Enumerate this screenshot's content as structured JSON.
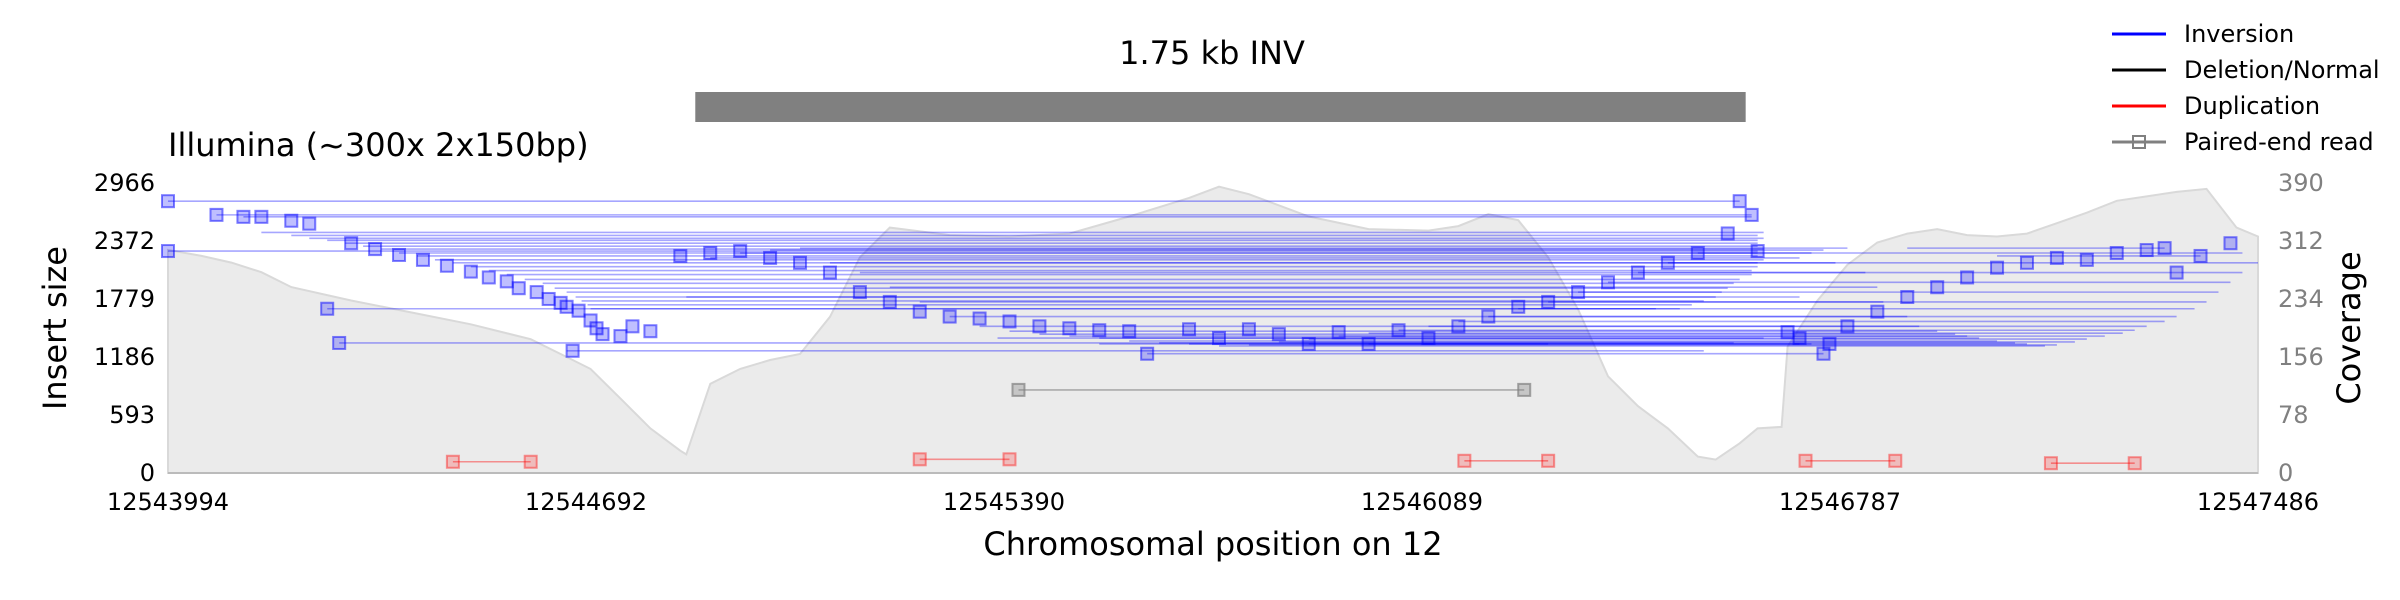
{
  "chart_data": {
    "type": "line",
    "sv_label": "1.75 kb INV",
    "sv_region": [
      12544875,
      12546630
    ],
    "panel_title": "Illumina (~300x 2x150bp)",
    "xlabel": "Chromosomal position on 12",
    "ylabel": "Insert size",
    "y2label": "Coverage",
    "xlim": [
      12543994,
      12547486
    ],
    "ylim": [
      0,
      2966
    ],
    "y2lim": [
      0,
      390
    ],
    "xticks": [
      "12543994",
      "12544692",
      "12545390",
      "12546089",
      "12546787",
      "12547486"
    ],
    "yticks": [
      "0",
      "593",
      "1186",
      "1779",
      "2372",
      "2966"
    ],
    "y2ticks": [
      "0",
      "78",
      "156",
      "234",
      "312",
      "390"
    ],
    "legend_position": "top-right",
    "legend": [
      {
        "label": "Inversion",
        "color": "#0000ff",
        "marker": false
      },
      {
        "label": "Deletion/Normal",
        "color": "#000000",
        "marker": false
      },
      {
        "label": "Duplication",
        "color": "#ff0000",
        "marker": false
      },
      {
        "label": "Paired-end read",
        "color": "#808080",
        "marker": true
      }
    ],
    "coverage": {
      "color": "#d9d9d9",
      "points": [
        [
          12543994,
          300
        ],
        [
          12544050,
          292
        ],
        [
          12544100,
          283
        ],
        [
          12544150,
          270
        ],
        [
          12544200,
          250
        ],
        [
          12544300,
          232
        ],
        [
          12544400,
          216
        ],
        [
          12544500,
          200
        ],
        [
          12544600,
          180
        ],
        [
          12544650,
          160
        ],
        [
          12544700,
          140
        ],
        [
          12544750,
          100
        ],
        [
          12544800,
          60
        ],
        [
          12544850,
          30
        ],
        [
          12544860,
          25
        ],
        [
          12544900,
          120
        ],
        [
          12544950,
          140
        ],
        [
          12545000,
          152
        ],
        [
          12545050,
          160
        ],
        [
          12545100,
          210
        ],
        [
          12545150,
          290
        ],
        [
          12545200,
          330
        ],
        [
          12545300,
          320
        ],
        [
          12545400,
          318
        ],
        [
          12545500,
          322
        ],
        [
          12545600,
          345
        ],
        [
          12545700,
          370
        ],
        [
          12545750,
          385
        ],
        [
          12545800,
          375
        ],
        [
          12545900,
          345
        ],
        [
          12546000,
          328
        ],
        [
          12546100,
          326
        ],
        [
          12546150,
          332
        ],
        [
          12546200,
          348
        ],
        [
          12546250,
          340
        ],
        [
          12546300,
          290
        ],
        [
          12546350,
          220
        ],
        [
          12546400,
          130
        ],
        [
          12546450,
          90
        ],
        [
          12546500,
          60
        ],
        [
          12546550,
          22
        ],
        [
          12546580,
          18
        ],
        [
          12546620,
          40
        ],
        [
          12546650,
          60
        ],
        [
          12546690,
          62
        ],
        [
          12546700,
          170
        ],
        [
          12546750,
          232
        ],
        [
          12546800,
          280
        ],
        [
          12546850,
          310
        ],
        [
          12546900,
          322
        ],
        [
          12546950,
          328
        ],
        [
          12547000,
          320
        ],
        [
          12547050,
          318
        ],
        [
          12547100,
          322
        ],
        [
          12547150,
          336
        ],
        [
          12547200,
          350
        ],
        [
          12547250,
          366
        ],
        [
          12547300,
          372
        ],
        [
          12547350,
          378
        ],
        [
          12547400,
          382
        ],
        [
          12547450,
          330
        ],
        [
          12547486,
          318
        ]
      ]
    },
    "inversion_reads": {
      "color": "#0000ff",
      "pairs": [
        [
          12543994,
          2780,
          12546620,
          2780
        ],
        [
          12543994,
          2270,
          12546650,
          2270
        ],
        [
          12544075,
          2640,
          12546640,
          2640
        ],
        [
          12544120,
          2620,
          12546640,
          2620
        ],
        [
          12544150,
          2460,
          12546660,
          2460
        ],
        [
          12544200,
          2430,
          12546650,
          2430
        ],
        [
          12544230,
          2400,
          12546660,
          2400
        ],
        [
          12544260,
          2380,
          12546650,
          2380
        ],
        [
          12544290,
          2350,
          12546650,
          2350
        ],
        [
          12544320,
          2320,
          12546650,
          2320
        ],
        [
          12544350,
          2290,
          12546660,
          2290
        ],
        [
          12544380,
          2250,
          12546650,
          2250
        ],
        [
          12544410,
          2220,
          12546650,
          2220
        ],
        [
          12544440,
          2180,
          12546660,
          2180
        ],
        [
          12544470,
          2150,
          12546650,
          2150
        ],
        [
          12544500,
          2110,
          12546650,
          2110
        ],
        [
          12544530,
          2070,
          12546640,
          2070
        ],
        [
          12544560,
          2030,
          12546640,
          2030
        ],
        [
          12544590,
          1980,
          12546620,
          1980
        ],
        [
          12544620,
          1940,
          12546610,
          1940
        ],
        [
          12544640,
          1890,
          12546600,
          1890
        ],
        [
          12544660,
          1850,
          12546590,
          1850
        ],
        [
          12544675,
          1800,
          12546580,
          1800
        ],
        [
          12544685,
          1760,
          12546560,
          1760
        ],
        [
          12544695,
          1720,
          12546540,
          1720
        ],
        [
          12544700,
          1680,
          12546520,
          1680
        ],
        [
          12544260,
          1680,
          12546480,
          1680
        ],
        [
          12544280,
          1330,
          12546610,
          1330
        ],
        [
          12544660,
          1250,
          12546560,
          1250
        ],
        [
          12544860,
          1800,
          12546720,
          1800
        ],
        [
          12544900,
          2200,
          12546720,
          2200
        ],
        [
          12544950,
          2250,
          12546740,
          2250
        ],
        [
          12545000,
          2280,
          12546760,
          2280
        ],
        [
          12545050,
          2300,
          12546800,
          2300
        ],
        [
          12545100,
          2150,
          12546780,
          2150
        ],
        [
          12545150,
          2050,
          12546830,
          2050
        ],
        [
          12545200,
          1900,
          12546850,
          1900
        ],
        [
          12545250,
          1750,
          12546860,
          1750
        ],
        [
          12545300,
          1600,
          12546900,
          1600
        ],
        [
          12545350,
          1500,
          12546920,
          1500
        ],
        [
          12545400,
          1450,
          12546950,
          1450
        ],
        [
          12545450,
          1420,
          12546980,
          1420
        ],
        [
          12545500,
          1400,
          12547000,
          1400
        ],
        [
          12545550,
          1380,
          12547020,
          1380
        ],
        [
          12545600,
          1350,
          12547050,
          1350
        ],
        [
          12545650,
          1330,
          12547080,
          1330
        ],
        [
          12545700,
          1320,
          12547100,
          1320
        ],
        [
          12545750,
          1300,
          12547130,
          1300
        ],
        [
          12545800,
          1310,
          12547150,
          1310
        ],
        [
          12545850,
          1340,
          12547180,
          1340
        ],
        [
          12545900,
          1370,
          12547200,
          1370
        ],
        [
          12545950,
          1400,
          12547230,
          1400
        ],
        [
          12546000,
          1430,
          12547260,
          1430
        ],
        [
          12546050,
          1460,
          12547280,
          1460
        ],
        [
          12546100,
          1500,
          12547300,
          1500
        ],
        [
          12546150,
          1550,
          12547330,
          1550
        ],
        [
          12546200,
          1600,
          12547350,
          1600
        ],
        [
          12546250,
          1680,
          12547380,
          1680
        ],
        [
          12546300,
          1750,
          12547400,
          1750
        ],
        [
          12546350,
          1850,
          12547420,
          1850
        ],
        [
          12546400,
          1950,
          12547440,
          1950
        ],
        [
          12546450,
          2050,
          12547460,
          2050
        ],
        [
          12546500,
          2150,
          12547486,
          2150
        ],
        [
          12546550,
          2250,
          12547460,
          2250
        ],
        [
          12545380,
          1380,
          12546660,
          1380
        ],
        [
          12545550,
          1320,
          12546720,
          1320
        ],
        [
          12545630,
          1220,
          12546760,
          1220
        ],
        [
          12545900,
          1320,
          12546300,
          1320
        ],
        [
          12546000,
          1320,
          12546740,
          1320
        ],
        [
          12546900,
          2300,
          12547330,
          2300
        ],
        [
          12547050,
          2220,
          12547390,
          2220
        ]
      ],
      "markers": [
        [
          12543994,
          2780
        ],
        [
          12543994,
          2270
        ],
        [
          12544075,
          2640
        ],
        [
          12544120,
          2620
        ],
        [
          12544150,
          2620
        ],
        [
          12544200,
          2580
        ],
        [
          12544230,
          2550
        ],
        [
          12544260,
          1680
        ],
        [
          12544280,
          1330
        ],
        [
          12544300,
          2350
        ],
        [
          12544340,
          2290
        ],
        [
          12544380,
          2230
        ],
        [
          12544420,
          2180
        ],
        [
          12544460,
          2120
        ],
        [
          12544500,
          2060
        ],
        [
          12544530,
          2000
        ],
        [
          12544560,
          1960
        ],
        [
          12544580,
          1890
        ],
        [
          12544610,
          1850
        ],
        [
          12544630,
          1780
        ],
        [
          12544650,
          1740
        ],
        [
          12544660,
          1700
        ],
        [
          12544670,
          1250
        ],
        [
          12544680,
          1660
        ],
        [
          12544700,
          1560
        ],
        [
          12544710,
          1480
        ],
        [
          12544720,
          1420
        ],
        [
          12544750,
          1400
        ],
        [
          12544770,
          1500
        ],
        [
          12544800,
          1450
        ],
        [
          12544850,
          2220
        ],
        [
          12544900,
          2250
        ],
        [
          12544950,
          2270
        ],
        [
          12545000,
          2200
        ],
        [
          12545050,
          2150
        ],
        [
          12545100,
          2050
        ],
        [
          12545150,
          1850
        ],
        [
          12545200,
          1750
        ],
        [
          12545250,
          1650
        ],
        [
          12545300,
          1600
        ],
        [
          12545350,
          1580
        ],
        [
          12545400,
          1550
        ],
        [
          12545450,
          1500
        ],
        [
          12545500,
          1480
        ],
        [
          12545550,
          1460
        ],
        [
          12545600,
          1450
        ],
        [
          12545630,
          1220
        ],
        [
          12545700,
          1470
        ],
        [
          12545750,
          1380
        ],
        [
          12545800,
          1470
        ],
        [
          12545850,
          1420
        ],
        [
          12545900,
          1320
        ],
        [
          12545950,
          1440
        ],
        [
          12546000,
          1320
        ],
        [
          12546050,
          1460
        ],
        [
          12546100,
          1380
        ],
        [
          12546150,
          1500
        ],
        [
          12546200,
          1600
        ],
        [
          12546250,
          1700
        ],
        [
          12546300,
          1750
        ],
        [
          12546350,
          1850
        ],
        [
          12546400,
          1950
        ],
        [
          12546450,
          2050
        ],
        [
          12546500,
          2150
        ],
        [
          12546550,
          2250
        ],
        [
          12546600,
          2450
        ],
        [
          12546620,
          2780
        ],
        [
          12546640,
          2640
        ],
        [
          12546650,
          2270
        ],
        [
          12546700,
          1440
        ],
        [
          12546720,
          1380
        ],
        [
          12546760,
          1220
        ],
        [
          12546770,
          1320
        ],
        [
          12546800,
          1500
        ],
        [
          12546850,
          1650
        ],
        [
          12546900,
          1800
        ],
        [
          12546950,
          1900
        ],
        [
          12547000,
          2000
        ],
        [
          12547050,
          2100
        ],
        [
          12547100,
          2150
        ],
        [
          12547150,
          2200
        ],
        [
          12547200,
          2180
        ],
        [
          12547250,
          2250
        ],
        [
          12547300,
          2280
        ],
        [
          12547330,
          2300
        ],
        [
          12547350,
          2050
        ],
        [
          12547390,
          2220
        ],
        [
          12547440,
          2350
        ]
      ]
    },
    "duplication_reads": {
      "color": "#ff0000",
      "pairs": [
        [
          12544470,
          115,
          12544600,
          115
        ],
        [
          12545250,
          140,
          12545400,
          140
        ],
        [
          12546160,
          125,
          12546300,
          125
        ],
        [
          12546730,
          125,
          12546880,
          125
        ],
        [
          12547140,
          100,
          12547280,
          100
        ]
      ]
    },
    "normal_reads": {
      "color": "#808080",
      "pairs": [
        [
          12545415,
          850,
          12546260,
          850
        ]
      ]
    }
  }
}
